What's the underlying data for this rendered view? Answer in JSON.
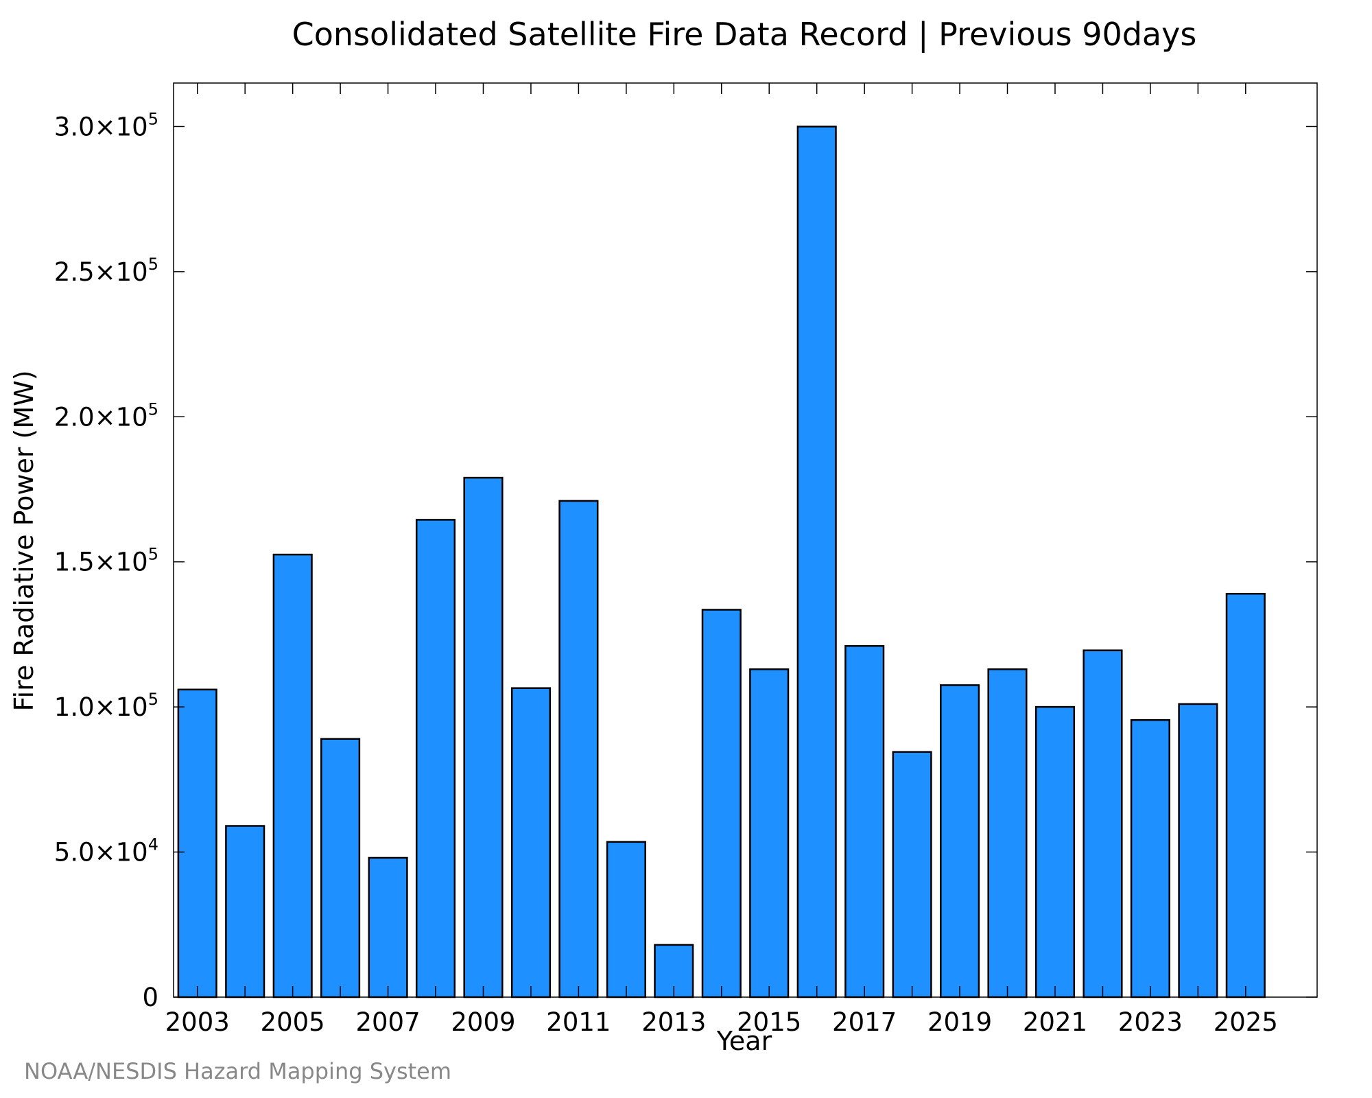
{
  "chart_data": {
    "type": "bar",
    "title": "Consolidated Satellite Fire Data Record | Previous 90days",
    "xlabel": "Year",
    "ylabel": "Fire Radiative Power (MW)",
    "credit": "NOAA/NESDIS Hazard Mapping System",
    "categories": [
      2003,
      2004,
      2005,
      2006,
      2007,
      2008,
      2009,
      2010,
      2011,
      2012,
      2013,
      2014,
      2015,
      2016,
      2017,
      2018,
      2019,
      2020,
      2021,
      2022,
      2023,
      2024,
      2025
    ],
    "values": [
      106000,
      59000,
      152500,
      89000,
      48000,
      164500,
      179000,
      106500,
      171000,
      53500,
      18000,
      133500,
      113000,
      300000,
      121000,
      84500,
      107500,
      113000,
      100000,
      119500,
      95500,
      101000,
      139000
    ],
    "xtick_labels": [
      "2003",
      "2005",
      "2007",
      "2009",
      "2011",
      "2013",
      "2015",
      "2017",
      "2019",
      "2021",
      "2023",
      "2025"
    ],
    "xlim": [
      2002.5,
      2026.5
    ],
    "ylim": [
      0,
      315000
    ],
    "ytick_labels": [
      {
        "value": 0,
        "mantissa": "0",
        "exp": ""
      },
      {
        "value": 50000,
        "mantissa": "5.0×10",
        "exp": "4"
      },
      {
        "value": 100000,
        "mantissa": "1.0×10",
        "exp": "5"
      },
      {
        "value": 150000,
        "mantissa": "1.5×10",
        "exp": "5"
      },
      {
        "value": 200000,
        "mantissa": "2.0×10",
        "exp": "5"
      },
      {
        "value": 250000,
        "mantissa": "2.5×10",
        "exp": "5"
      },
      {
        "value": 300000,
        "mantissa": "3.0×10",
        "exp": "5"
      }
    ],
    "bar_color": "#1e90ff",
    "bar_edge_color": "#000000",
    "grid": false,
    "legend": "none"
  }
}
